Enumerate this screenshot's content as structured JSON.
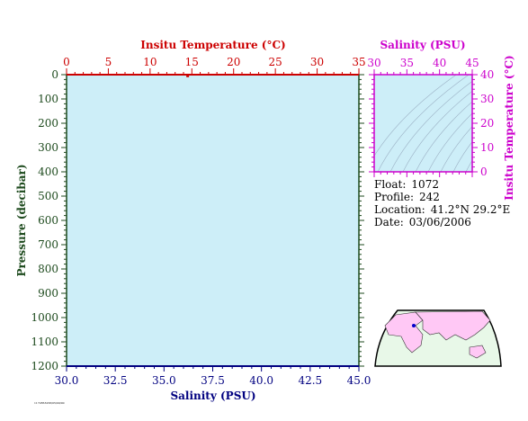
{
  "colors": {
    "pressure_axis": "#1d4a1d",
    "temperature_axis": "#cc0000",
    "salinity_axis": "#000080",
    "ts_axis": "#cc00cc",
    "plot_fill": "#cdeef8",
    "map_land": "#ffc8f5",
    "map_ocean": "#e8f8e8",
    "isopycnal": "#9bb0c4"
  },
  "chart_data": [
    {
      "type": "line",
      "title": "",
      "top_axis": {
        "label": "Insitu Temperature (°C)",
        "range": [
          0,
          35
        ],
        "ticks": [
          "0",
          "5",
          "10",
          "15",
          "20",
          "25",
          "30",
          "35"
        ]
      },
      "left_axis": {
        "label": "Pressure (decibar)",
        "range": [
          0,
          1200
        ],
        "inverted": true,
        "ticks": [
          "0",
          "100",
          "200",
          "300",
          "400",
          "500",
          "600",
          "700",
          "800",
          "900",
          "1000",
          "1100",
          "1200"
        ]
      },
      "bottom_axis": {
        "label": "Salinity (PSU)",
        "range": [
          30,
          45
        ],
        "ticks": [
          "30.0",
          "32.5",
          "35.0",
          "37.5",
          "40.0",
          "42.5",
          "45.0"
        ]
      },
      "series": [
        {
          "axis": "temperature",
          "points": [
            {
              "temperature": 14.5,
              "pressure": 3
            }
          ]
        },
        {
          "axis": "salinity",
          "points": []
        }
      ],
      "grid": false
    },
    {
      "type": "scatter",
      "title": "",
      "x_axis": {
        "label": "Salinity (PSU)",
        "range": [
          30,
          45
        ],
        "ticks": [
          "30",
          "35",
          "40",
          "45"
        ],
        "position": "top"
      },
      "y_axis": {
        "label": "Insitu Temperature (°C)",
        "range": [
          0,
          40
        ],
        "ticks": [
          "0",
          "10",
          "20",
          "30",
          "40"
        ],
        "position": "right"
      },
      "series": [],
      "background": "isopycnal contours"
    }
  ],
  "info": {
    "float_label": "Float:",
    "float_value": "1072",
    "profile_label": "Profile:",
    "profile_value": "242",
    "location_label": "Location:",
    "location_value": "41.2°N  29.2°E",
    "date_label": "Date:",
    "date_value": "03/06/2006"
  },
  "map": {
    "location_marker": {
      "lat": 41.2,
      "lon": 29.2
    }
  },
  "footer": {
    "fineprint": "1172853258/05/00/00"
  }
}
